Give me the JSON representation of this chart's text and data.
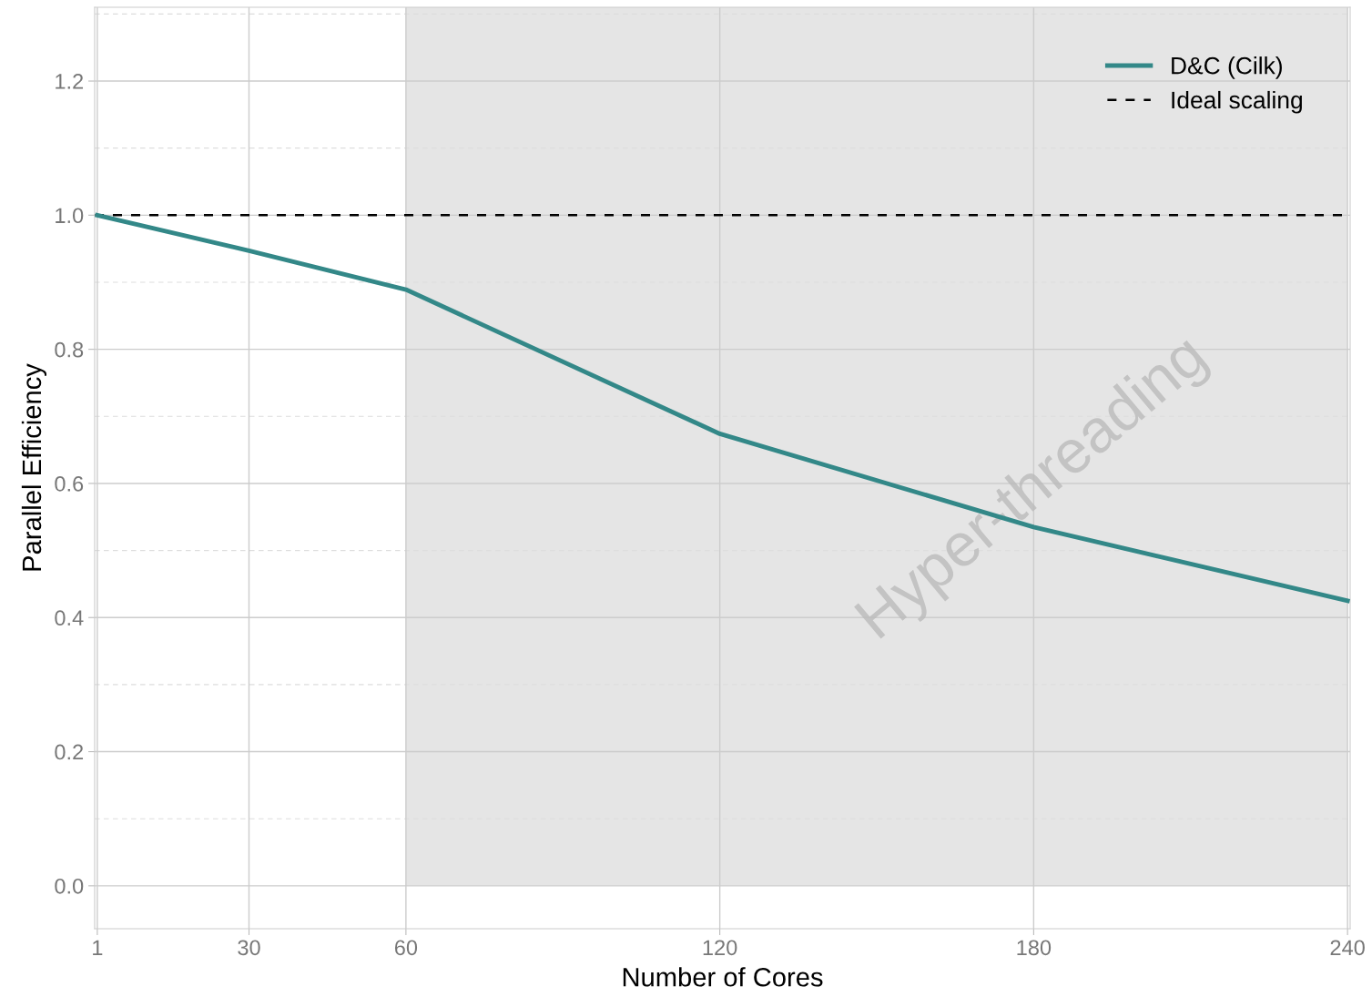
{
  "chart_data": {
    "type": "line",
    "xlabel": "Number of Cores",
    "ylabel": "Parallel Efficiency",
    "x": [
      1,
      30,
      60,
      120,
      180,
      240
    ],
    "series": [
      {
        "name": "D&C (Cilk)",
        "color": "#338888",
        "values": [
          1.0,
          0.947,
          0.889,
          0.674,
          0.535,
          0.425
        ]
      }
    ],
    "ref_lines": [
      {
        "axis": "y",
        "value": 1.0,
        "label": "Ideal scaling",
        "color": "#000000",
        "line_style": "dashed"
      }
    ],
    "bands": [
      {
        "axis": "x",
        "from": 60,
        "to": 240,
        "label": "Hyper-threading",
        "color": "#e5e5e5"
      }
    ],
    "xlim": [
      0.5,
      240.5
    ],
    "xticks": [
      1,
      30,
      60,
      120,
      180,
      240
    ],
    "ylim": [
      -0.064,
      1.31
    ],
    "yticks": [
      {
        "value": 0,
        "label": "0.0"
      },
      0.2,
      0.4,
      0.6,
      0.8,
      {
        "value": 1,
        "label": "1.0"
      },
      1.2
    ],
    "grid": true,
    "legend": "top right",
    "marker": "none",
    "line_style": "solid"
  }
}
